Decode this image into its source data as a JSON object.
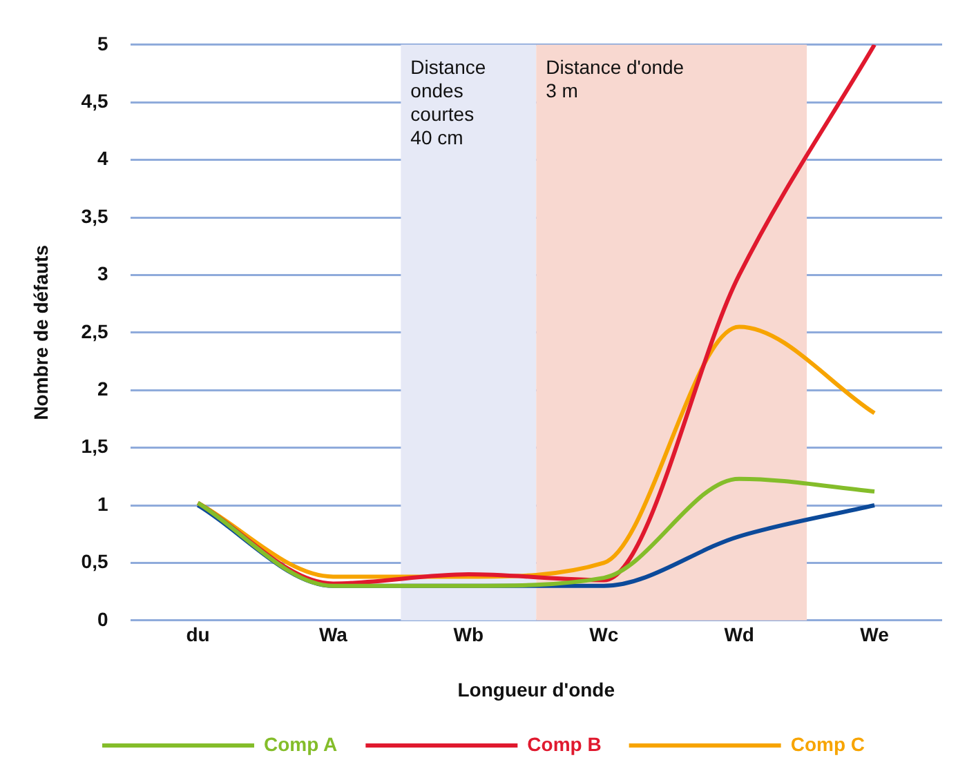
{
  "chart_data": {
    "type": "line",
    "xlabel": "Longueur d'onde",
    "ylabel": "Nombre de défauts",
    "categories": [
      "du",
      "Wa",
      "Wb",
      "Wc",
      "Wd",
      "We"
    ],
    "ylim": [
      0,
      5
    ],
    "yticks": [
      0,
      {
        "value": 0.5,
        "label": "0,5"
      },
      1,
      {
        "value": 1.5,
        "label": "1,5"
      },
      2,
      {
        "value": 2.5,
        "label": "2,5"
      },
      3,
      {
        "value": 3.5,
        "label": "3,5"
      },
      4,
      {
        "value": 4.5,
        "label": "4,5"
      },
      5
    ],
    "grid": "y",
    "legend": "bottom",
    "marker": "none",
    "line_style": "solid",
    "bands": [
      {
        "axis": "x",
        "from": "Wb",
        "to": "Wb",
        "label": "Distance ondes courtes\n40 cm",
        "color": "#e6e9f6"
      },
      {
        "axis": "x",
        "from": "Wc",
        "to": "Wd",
        "label": "Distance d'onde\n3 m",
        "color": "#f8d8d0"
      }
    ],
    "series": [
      {
        "name": "Comp A",
        "color": "#84bd2a",
        "values": [
          1.02,
          0.3,
          0.3,
          0.37,
          1.23,
          1.12
        ]
      },
      {
        "name": "Comp B",
        "color": "#e0192e",
        "values": [
          1.02,
          0.32,
          0.4,
          0.35,
          3.0,
          5.0
        ]
      },
      {
        "color": "#0c4a9a",
        "values": [
          1.0,
          0.3,
          0.3,
          0.3,
          0.73,
          1.0
        ]
      },
      {
        "name": "Comp C",
        "color": "#f7a400",
        "values": [
          1.02,
          0.38,
          0.38,
          0.5,
          2.55,
          1.8
        ]
      }
    ]
  }
}
